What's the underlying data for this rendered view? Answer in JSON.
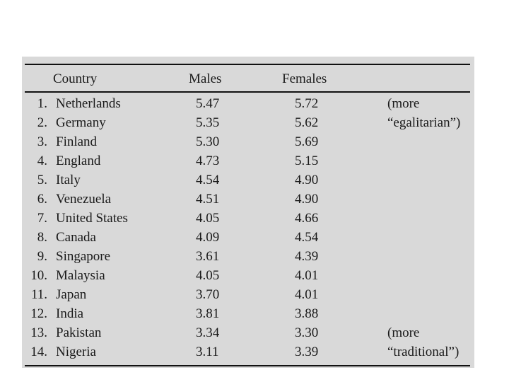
{
  "table": {
    "headers": {
      "country": "Country",
      "males": "Males",
      "females": "Females"
    },
    "rows": [
      {
        "rank": "1.",
        "country": "Netherlands",
        "males": "5.47",
        "females": "5.72",
        "note": "(more"
      },
      {
        "rank": "2.",
        "country": "Germany",
        "males": "5.35",
        "females": "5.62",
        "note": "“egalitarian”)"
      },
      {
        "rank": "3.",
        "country": "Finland",
        "males": "5.30",
        "females": "5.69",
        "note": ""
      },
      {
        "rank": "4.",
        "country": "England",
        "males": "4.73",
        "females": "5.15",
        "note": ""
      },
      {
        "rank": "5.",
        "country": "Italy",
        "males": "4.54",
        "females": "4.90",
        "note": ""
      },
      {
        "rank": "6.",
        "country": "Venezuela",
        "males": "4.51",
        "females": "4.90",
        "note": ""
      },
      {
        "rank": "7.",
        "country": "United States",
        "males": "4.05",
        "females": "4.66",
        "note": ""
      },
      {
        "rank": "8.",
        "country": "Canada",
        "males": "4.09",
        "females": "4.54",
        "note": ""
      },
      {
        "rank": "9.",
        "country": "Singapore",
        "males": "3.61",
        "females": "4.39",
        "note": ""
      },
      {
        "rank": "10.",
        "country": "Malaysia",
        "males": "4.05",
        "females": "4.01",
        "note": ""
      },
      {
        "rank": "11.",
        "country": "Japan",
        "males": "3.70",
        "females": "4.01",
        "note": ""
      },
      {
        "rank": "12.",
        "country": "India",
        "males": "3.81",
        "females": "3.88",
        "note": ""
      },
      {
        "rank": "13.",
        "country": "Pakistan",
        "males": "3.34",
        "females": "3.30",
        "note": "(more"
      },
      {
        "rank": "14.",
        "country": "Nigeria",
        "males": "3.11",
        "females": "3.39",
        "note": "“traditional”)"
      }
    ]
  }
}
